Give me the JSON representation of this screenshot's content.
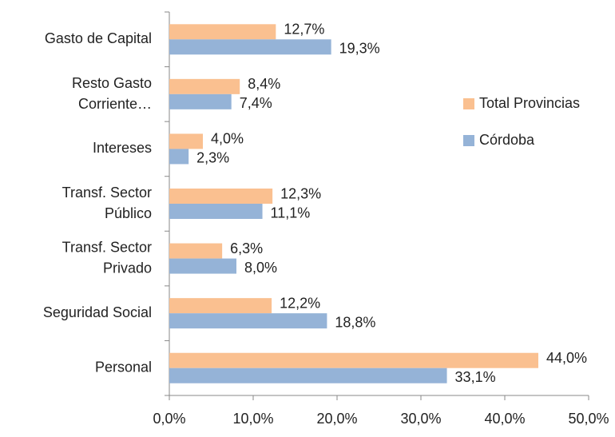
{
  "chart_data": {
    "type": "hbar",
    "categories": [
      "Gasto de Capital",
      "Resto Gasto\nCorriente…",
      "Intereses",
      "Transf. Sector\nPúblico",
      "Transf. Sector\nPrivado",
      "Seguridad Social",
      "Personal"
    ],
    "series": [
      {
        "name": "Total Provincias",
        "color": "#fac090",
        "values": [
          12.7,
          8.4,
          4.0,
          12.3,
          6.3,
          12.2,
          44.0
        ],
        "value_labels": [
          "12,7%",
          "8,4%",
          "4,0%",
          "12,3%",
          "6,3%",
          "12,2%",
          "44,0%"
        ]
      },
      {
        "name": "Córdoba",
        "color": "#95b3d7",
        "values": [
          19.3,
          7.4,
          2.3,
          11.1,
          8.0,
          18.8,
          33.1
        ],
        "value_labels": [
          "19,3%",
          "7,4%",
          "2,3%",
          "11,1%",
          "8,0%",
          "18,8%",
          "33,1%"
        ]
      }
    ],
    "xlim": [
      0,
      50
    ],
    "xticks": [
      {
        "value": 0,
        "label": "0,0%"
      },
      {
        "value": 10,
        "label": "10,0%"
      },
      {
        "value": 20,
        "label": "20,0%"
      },
      {
        "value": 30,
        "label": "30,0%"
      },
      {
        "value": 40,
        "label": "40,0%"
      },
      {
        "value": 50,
        "label": "50,0%"
      }
    ],
    "legend": "right"
  }
}
